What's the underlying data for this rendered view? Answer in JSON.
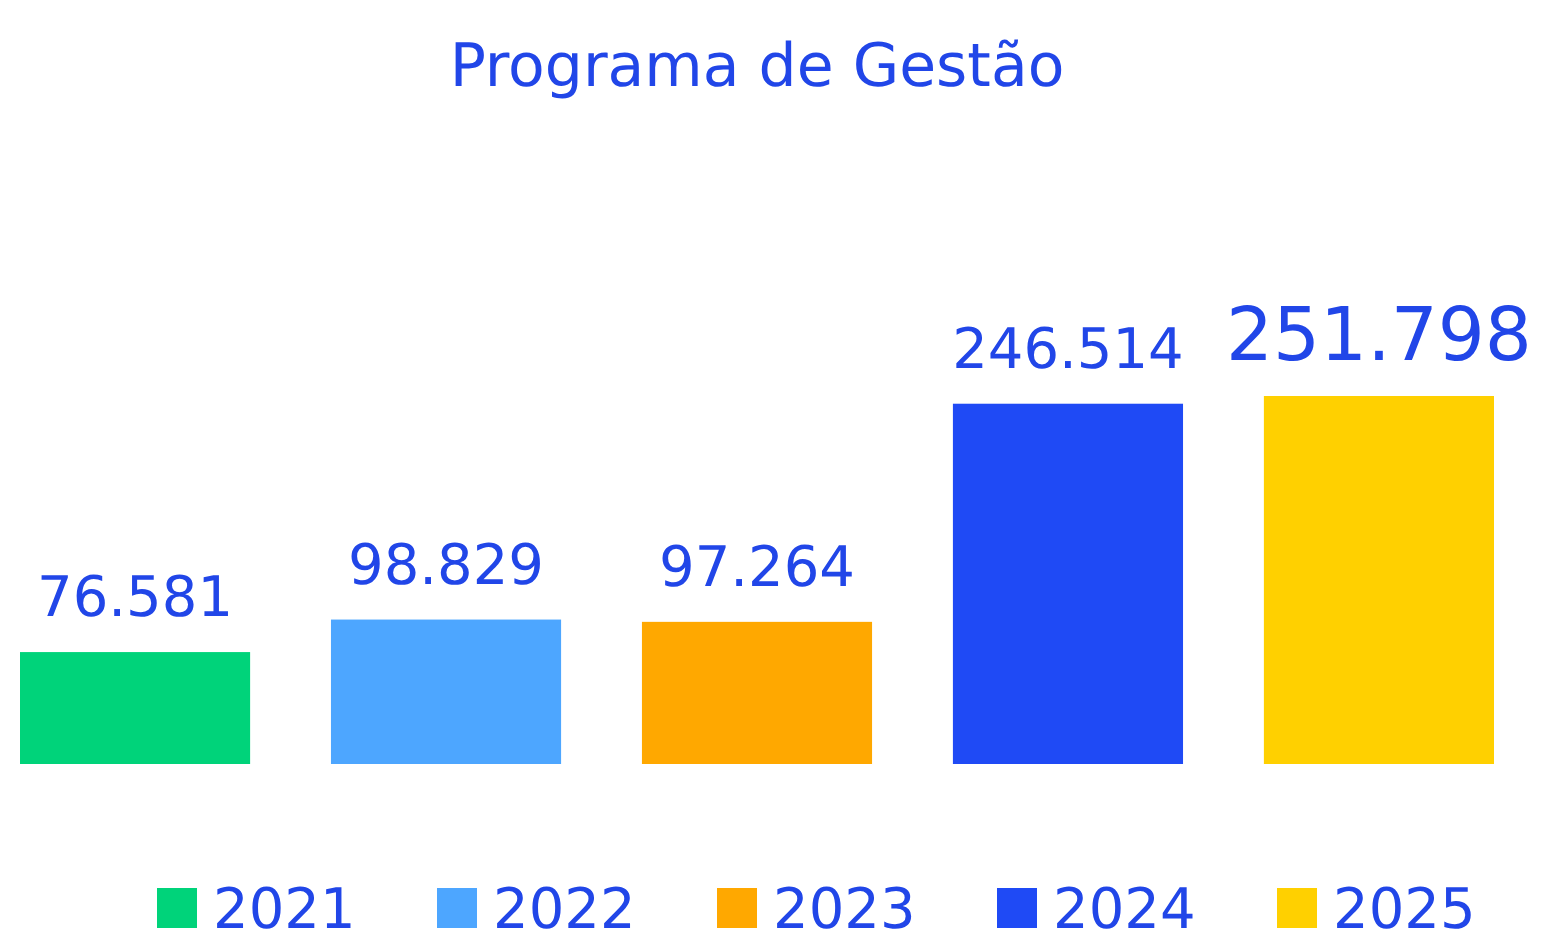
{
  "chart_data": {
    "type": "bar",
    "title": "Programa de Gestão",
    "categories": [
      null,
      null,
      null,
      null,
      null
    ],
    "stacked": true,
    "legend": "bottom",
    "series": [
      {
        "name": "2021",
        "color": "#00d37a",
        "values": [
          76581,
          null,
          null,
          null,
          null
        ],
        "value_labels": [
          "76.581",
          null,
          null,
          null,
          null
        ]
      },
      {
        "name": "2022",
        "color": "#4da6ff",
        "values": [
          null,
          98829,
          null,
          null,
          null
        ],
        "value_labels": [
          null,
          "98.829",
          null,
          null,
          null
        ]
      },
      {
        "name": "2023",
        "color": "#ffa800",
        "values": [
          null,
          null,
          97264,
          null,
          null
        ],
        "value_labels": [
          null,
          null,
          "97.264",
          null,
          null
        ]
      },
      {
        "name": "2024",
        "color": "#1f4af5",
        "values": [
          null,
          null,
          null,
          246514,
          null
        ],
        "value_labels": [
          null,
          null,
          null,
          "246.514",
          null
        ]
      },
      {
        "name": "2025",
        "color": "#ffd000",
        "values": [
          null,
          null,
          null,
          null,
          251798
        ],
        "value_labels": [
          null,
          null,
          null,
          null,
          "251.798"
        ]
      }
    ]
  }
}
